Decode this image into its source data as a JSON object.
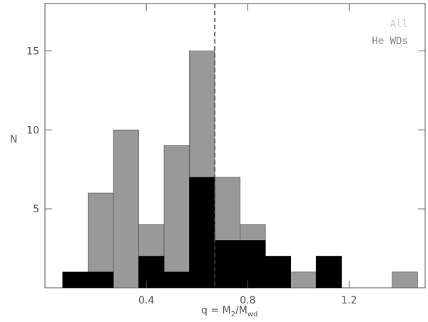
{
  "chart_data": {
    "type": "histogram",
    "bins": [
      0.07,
      0.17,
      0.27,
      0.37,
      0.47,
      0.57,
      0.67,
      0.77,
      0.87,
      0.97,
      1.07,
      1.17,
      1.27,
      1.37,
      1.47
    ],
    "series": [
      {
        "name": "All",
        "color": "#999999",
        "label_color": "#cccccc",
        "values": [
          1,
          6,
          10,
          4,
          9,
          15,
          7,
          4,
          2,
          1,
          2,
          0,
          0,
          1
        ]
      },
      {
        "name": "He WDs",
        "color": "#000000",
        "label_color": "#888888",
        "values": [
          1,
          1,
          0,
          2,
          1,
          7,
          3,
          3,
          2,
          0,
          2,
          0,
          0,
          0
        ]
      }
    ],
    "ylabel": "N",
    "xlabel": [
      "q = M",
      "2",
      "/M",
      "wd"
    ],
    "vline": 0.67,
    "xlim": [
      0,
      1.5
    ],
    "xticks": [
      0.4,
      0.8,
      1.2
    ],
    "ylim": [
      0,
      18
    ],
    "yticks": [
      5,
      10,
      15
    ],
    "legend": "upper right"
  }
}
